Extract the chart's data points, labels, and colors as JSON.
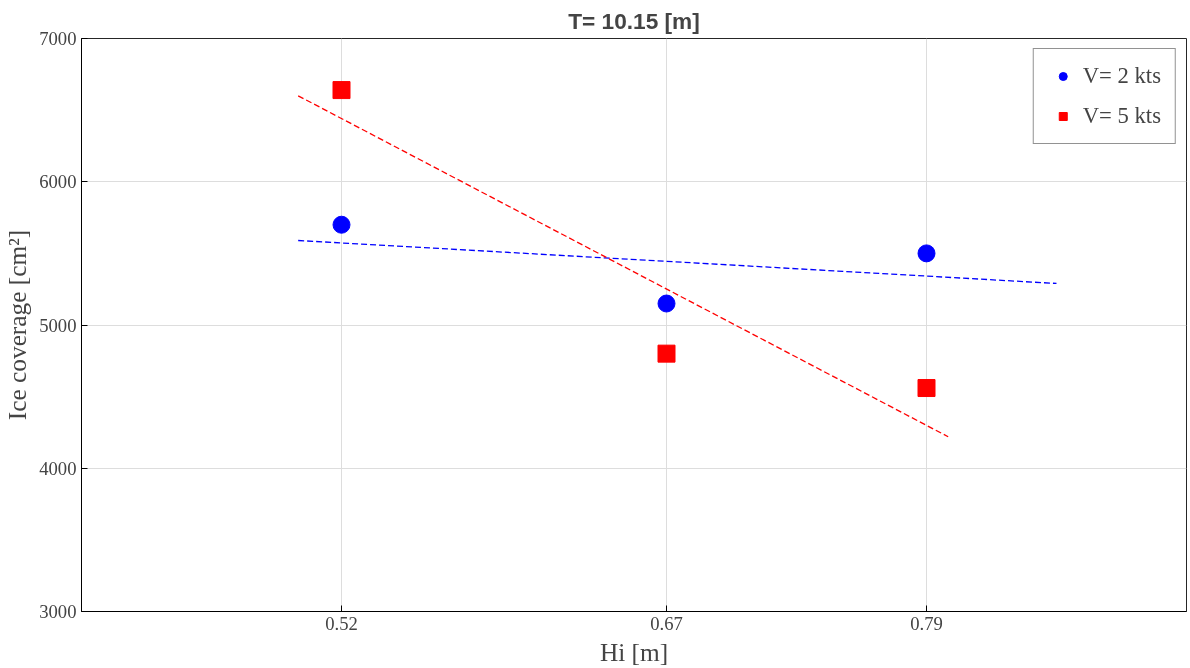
{
  "chart_data": {
    "type": "scatter",
    "title": "T= 10.15 [m]",
    "xlabel": "Hi [m]",
    "ylabel": "Ice coverage [cm²]",
    "xlim": [
      0.4,
      0.91
    ],
    "ylim": [
      3000,
      7000
    ],
    "xticks": [
      0.52,
      0.67,
      0.79
    ],
    "yticks": [
      3000,
      4000,
      5000,
      6000,
      7000
    ],
    "grid": true,
    "legend": "top right",
    "series": [
      {
        "name": "V= 2 kts",
        "color": "#0000ff",
        "marker": "circle",
        "x": [
          0.52,
          0.67,
          0.79
        ],
        "values": [
          5700,
          5150,
          5500
        ]
      },
      {
        "name": "V= 5 kts",
        "color": "#ff0000",
        "marker": "square",
        "x": [
          0.52,
          0.67,
          0.79
        ],
        "values": [
          6640,
          4800,
          4560
        ]
      },
      {
        "type": "line",
        "color": "#0000ff",
        "line_style": "dashed",
        "x": [
          0.5,
          0.85
        ],
        "values": [
          5590,
          5290
        ]
      },
      {
        "type": "line",
        "color": "#ff0000",
        "line_style": "dashed",
        "x": [
          0.5,
          0.8
        ],
        "values": [
          6600,
          4220
        ]
      }
    ]
  }
}
